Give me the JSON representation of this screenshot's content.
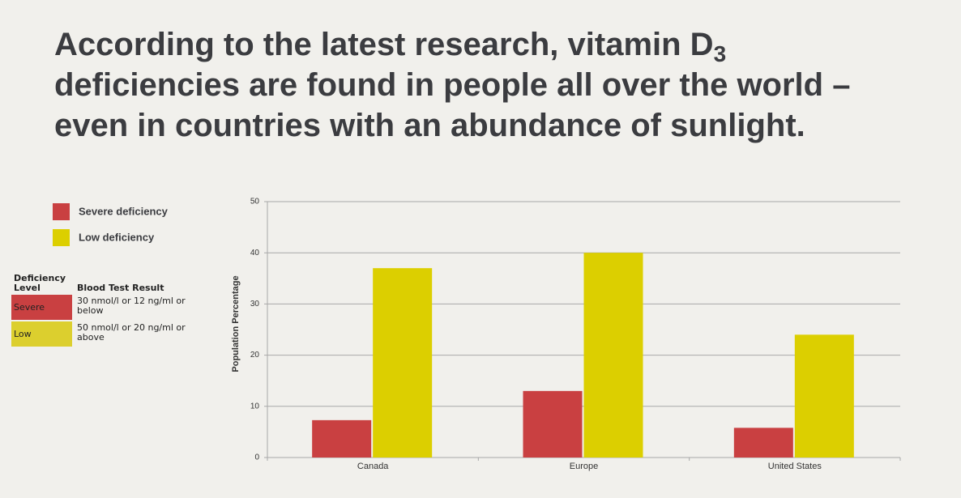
{
  "header": {
    "title_line1": "According to the latest research, vitamin D",
    "title_subscript": "3",
    "title_line2": "deficiencies are found in people all over the world –",
    "title_line3": "even in countries with an abundance of sunlight."
  },
  "table": {
    "columns": [
      "Deficiency Level",
      "Blood Test Result"
    ],
    "rows": [
      [
        "Severe",
        "30 nmol/l or 12 ng/ml or below"
      ],
      [
        "Low",
        "50 nmol/l or 20 ng/ml or above"
      ]
    ],
    "row_colors": [
      "#c94041",
      "#dccf2e"
    ]
  },
  "chart_data": {
    "type": "bar",
    "y_label": "Population Percentage",
    "categories": [
      "Canada",
      "Europe",
      "United States"
    ],
    "series": [
      {
        "name": "Severe deficiency",
        "color": "#c94041",
        "values": [
          7.3,
          13,
          5.8
        ]
      },
      {
        "name": "Low deficiency",
        "color": "#dccf00",
        "values": [
          37,
          40,
          24
        ]
      }
    ],
    "ylim": [
      0,
      50
    ],
    "yticks": [
      0,
      10,
      20,
      30,
      40,
      50
    ],
    "grid": true
  }
}
